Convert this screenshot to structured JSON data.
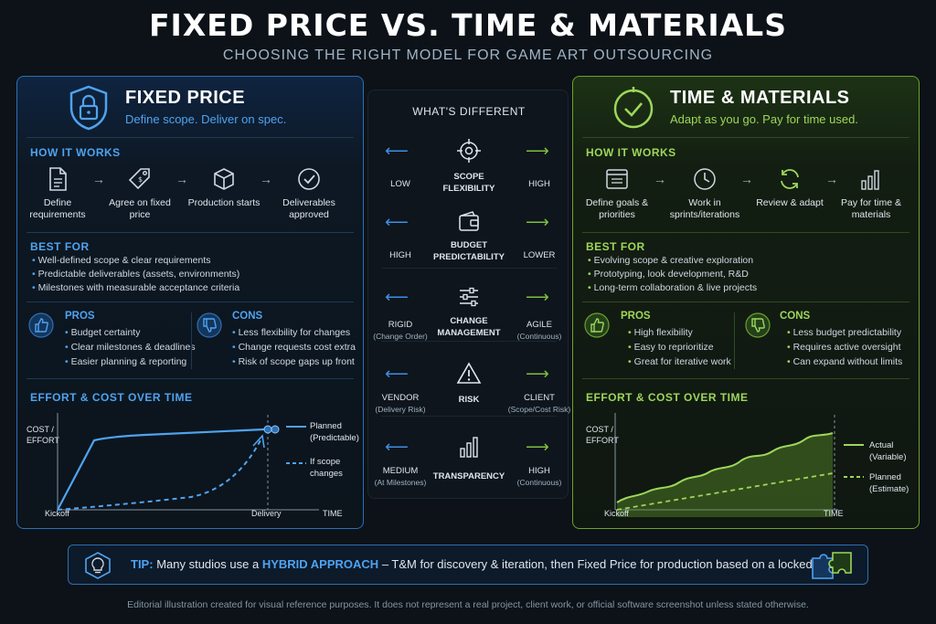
{
  "title": "FIXED PRICE VS. TIME & MATERIALS",
  "subtitle": "CHOOSING THE RIGHT MODEL FOR GAME ART OUTSOURCING",
  "colors": {
    "fixed_accent": "#4fa3f0",
    "tm_accent": "#9ed65a",
    "background": "#0c1218"
  },
  "fixed": {
    "title": "FIXED PRICE",
    "tagline": "Define scope. Deliver on spec.",
    "icon": "lock-shield-icon",
    "how_title": "HOW IT WORKS",
    "steps": [
      {
        "icon": "document-icon",
        "label": "Define requirements"
      },
      {
        "icon": "price-tag-icon",
        "label": "Agree on fixed price"
      },
      {
        "icon": "box-icon",
        "label": "Production starts"
      },
      {
        "icon": "check-circle-icon",
        "label": "Deliverables approved"
      }
    ],
    "best_title": "BEST FOR",
    "best_for": [
      "Well-defined scope & clear requirements",
      "Predictable deliverables (assets, environments)",
      "Milestones with measurable acceptance criteria"
    ],
    "pros_title": "PROS",
    "pros": [
      "Budget certainty",
      "Clear milestones & deadlines",
      "Easier planning & reporting"
    ],
    "cons_title": "CONS",
    "cons": [
      "Less flexibility for changes",
      "Change requests cost extra",
      "Risk of scope gaps up front"
    ],
    "chart_title": "EFFORT & COST OVER TIME",
    "chart_ylabel": "COST / EFFORT",
    "chart_x_start": "Kickoff",
    "chart_x_mid": "Delivery",
    "chart_x_end": "TIME",
    "legend_solid": "Planned (Predictable)",
    "legend_dashed": "If scope changes"
  },
  "tm": {
    "title": "TIME & MATERIALS",
    "tagline": "Adapt as you go. Pay for time used.",
    "icon": "clock-check-icon",
    "how_title": "HOW IT WORKS",
    "steps": [
      {
        "icon": "list-window-icon",
        "label": "Define goals & priorities"
      },
      {
        "icon": "clock-icon",
        "label": "Work in sprints/iterations"
      },
      {
        "icon": "refresh-icon",
        "label": "Review & adapt"
      },
      {
        "icon": "bar-chart-icon",
        "label": "Pay for time & materials"
      }
    ],
    "best_title": "BEST FOR",
    "best_for": [
      "Evolving scope & creative exploration",
      "Prototyping, look development, R&D",
      "Long-term collaboration & live projects"
    ],
    "pros_title": "PROS",
    "pros": [
      "High flexibility",
      "Easy to reprioritize",
      "Great for iterative work"
    ],
    "cons_title": "CONS",
    "cons": [
      "Less budget predictability",
      "Requires active oversight",
      "Can expand without limits"
    ],
    "chart_title": "EFFORT & COST OVER TIME",
    "chart_ylabel": "COST / EFFORT",
    "chart_x_start": "Kickoff",
    "chart_x_end": "TIME",
    "legend_solid": "Actual (Variable)",
    "legend_dashed": "Planned (Estimate)"
  },
  "middle": {
    "title": "WHAT'S DIFFERENT",
    "rows": [
      {
        "icon": "target-icon",
        "label": "SCOPE FLEXIBILITY",
        "left": "LOW",
        "left_sub": "",
        "right": "HIGH",
        "right_sub": ""
      },
      {
        "icon": "wallet-icon",
        "label": "BUDGET PREDICTABILITY",
        "left": "HIGH",
        "left_sub": "",
        "right": "LOWER",
        "right_sub": ""
      },
      {
        "icon": "sliders-icon",
        "label": "CHANGE MANAGEMENT",
        "left": "RIGID",
        "left_sub": "(Change Order)",
        "right": "AGILE",
        "right_sub": "(Continuous)"
      },
      {
        "icon": "warning-icon",
        "label": "RISK",
        "left": "VENDOR",
        "left_sub": "(Delivery Risk)",
        "right": "CLIENT",
        "right_sub": "(Scope/Cost Risk)"
      },
      {
        "icon": "bar-chart-icon",
        "label": "TRANSPARENCY",
        "left": "MEDIUM",
        "left_sub": "(At Milestones)",
        "right": "HIGH",
        "right_sub": "(Continuous)"
      }
    ]
  },
  "tip": {
    "label": "TIP:",
    "pre": "Many studios use a",
    "key": "HYBRID APPROACH",
    "post": "– T&M for discovery & iteration, then Fixed Price for production based on a locked scope."
  },
  "footer": "Editorial illustration created for visual reference purposes. It does not represent a real project, client work, or official software screenshot unless stated otherwise."
}
